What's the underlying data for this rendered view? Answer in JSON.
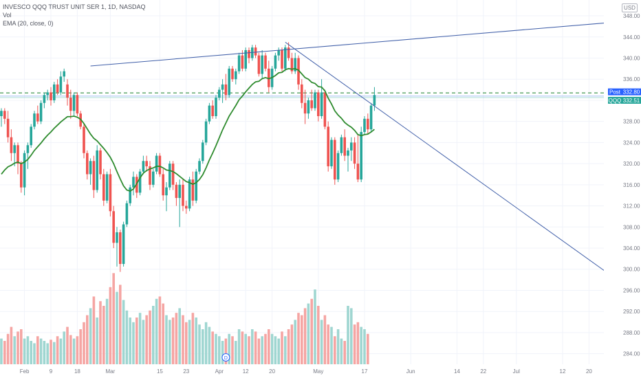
{
  "legend": {
    "symbol": "INVESCO QQQ TRUST UNIT SER 1, 1D, NASDAQ",
    "volume": "Vol",
    "ema": "EMA (20, close, 0)"
  },
  "currency": "USD",
  "chart_data": {
    "type": "candlestick",
    "y_axis": {
      "range": [
        282,
        351
      ],
      "ticks": [
        284,
        288,
        292,
        296,
        300,
        304,
        308,
        312,
        316,
        320,
        324,
        328,
        332,
        336,
        340,
        344,
        348
      ]
    },
    "x_axis": {
      "tick_labels": [
        "Feb",
        "9",
        "18",
        "Mar",
        "15",
        "23",
        "Apr",
        "12",
        "20",
        "May",
        "17",
        "Jun",
        "14",
        "22",
        "Jul",
        "12",
        "20"
      ],
      "tick_index": [
        7,
        15,
        23,
        33,
        48,
        56,
        66,
        74,
        82,
        96,
        110,
        124,
        138,
        146,
        156,
        170,
        178
      ]
    },
    "candles": [
      [
        329.0,
        330.5,
        327.0,
        330.0
      ],
      [
        330.0,
        330.5,
        327.5,
        328.5
      ],
      [
        328.5,
        330.0,
        324.0,
        325.0
      ],
      [
        325.0,
        326.5,
        320.5,
        322.0
      ],
      [
        322.0,
        324.0,
        319.5,
        323.5
      ],
      [
        323.5,
        324.0,
        318.0,
        320.0
      ],
      [
        320.0,
        320.5,
        314.5,
        315.5
      ],
      [
        315.5,
        322.5,
        314.0,
        322.0
      ],
      [
        322.0,
        324.0,
        319.0,
        323.5
      ],
      [
        323.5,
        327.5,
        323.0,
        327.0
      ],
      [
        327.0,
        330.0,
        326.5,
        329.5
      ],
      [
        329.5,
        331.0,
        327.5,
        328.0
      ],
      [
        328.0,
        332.0,
        327.5,
        331.5
      ],
      [
        331.5,
        333.5,
        330.5,
        333.0
      ],
      [
        333.0,
        334.0,
        332.0,
        333.5
      ],
      [
        333.5,
        334.5,
        331.0,
        332.0
      ],
      [
        332.0,
        335.5,
        331.5,
        335.0
      ],
      [
        335.0,
        336.0,
        333.0,
        333.5
      ],
      [
        333.5,
        337.5,
        333.0,
        336.5
      ],
      [
        336.5,
        338.0,
        335.5,
        337.5
      ],
      [
        335.0,
        336.0,
        331.0,
        332.5
      ],
      [
        332.5,
        334.0,
        328.5,
        330.0
      ],
      [
        330.0,
        333.5,
        329.0,
        333.0
      ],
      [
        333.0,
        333.5,
        329.0,
        329.5
      ],
      [
        329.5,
        330.0,
        326.5,
        327.0
      ],
      [
        327.0,
        327.5,
        321.0,
        322.0
      ],
      [
        322.0,
        322.5,
        317.0,
        318.0
      ],
      [
        318.0,
        321.0,
        316.0,
        320.5
      ],
      [
        320.5,
        321.5,
        313.5,
        315.0
      ],
      [
        315.0,
        323.5,
        314.5,
        322.5
      ],
      [
        322.5,
        323.0,
        317.0,
        318.0
      ],
      [
        318.0,
        319.0,
        312.0,
        313.0
      ],
      [
        313.0,
        318.5,
        312.5,
        318.0
      ],
      [
        318.0,
        319.0,
        310.0,
        311.0
      ],
      [
        311.0,
        312.0,
        304.0,
        305.0
      ],
      [
        305.0,
        308.0,
        300.5,
        307.0
      ],
      [
        307.0,
        307.5,
        299.5,
        301.0
      ],
      [
        301.0,
        309.0,
        300.5,
        308.5
      ],
      [
        308.5,
        313.0,
        308.0,
        312.5
      ],
      [
        312.5,
        316.0,
        312.0,
        315.5
      ],
      [
        315.5,
        318.5,
        314.0,
        317.5
      ],
      [
        317.5,
        318.0,
        313.5,
        314.5
      ],
      [
        314.5,
        319.0,
        314.0,
        318.5
      ],
      [
        318.5,
        321.5,
        318.0,
        320.5
      ],
      [
        320.5,
        321.5,
        318.5,
        319.5
      ],
      [
        319.5,
        320.5,
        315.0,
        316.0
      ],
      [
        316.0,
        319.0,
        315.5,
        318.5
      ],
      [
        318.5,
        322.0,
        318.0,
        321.5
      ],
      [
        321.5,
        322.0,
        317.5,
        318.0
      ],
      [
        318.0,
        319.0,
        313.0,
        314.0
      ],
      [
        314.0,
        316.5,
        311.0,
        315.5
      ],
      [
        315.5,
        320.5,
        315.0,
        320.0
      ],
      [
        320.0,
        320.5,
        315.0,
        316.0
      ],
      [
        316.0,
        316.5,
        312.0,
        313.5
      ],
      [
        313.5,
        317.0,
        308.0,
        316.0
      ],
      [
        316.0,
        317.0,
        311.0,
        312.0
      ],
      [
        312.0,
        313.0,
        310.5,
        311.5
      ],
      [
        311.5,
        317.5,
        311.0,
        317.0
      ],
      [
        317.0,
        318.5,
        312.0,
        313.0
      ],
      [
        313.0,
        319.0,
        312.5,
        318.5
      ],
      [
        318.5,
        321.0,
        318.0,
        320.5
      ],
      [
        320.5,
        324.5,
        320.0,
        324.0
      ],
      [
        324.0,
        328.5,
        323.5,
        328.0
      ],
      [
        328.0,
        331.5,
        327.5,
        331.0
      ],
      [
        331.0,
        332.0,
        328.5,
        329.0
      ],
      [
        329.0,
        333.0,
        328.5,
        332.5
      ],
      [
        332.5,
        334.5,
        332.0,
        334.0
      ],
      [
        334.0,
        336.0,
        331.5,
        335.0
      ],
      [
        335.0,
        337.0,
        332.0,
        333.0
      ],
      [
        333.0,
        338.5,
        332.5,
        338.0
      ],
      [
        338.0,
        338.5,
        335.5,
        336.0
      ],
      [
        336.0,
        338.0,
        335.0,
        337.5
      ],
      [
        337.5,
        341.0,
        337.0,
        340.5
      ],
      [
        340.5,
        341.5,
        337.5,
        338.0
      ],
      [
        338.0,
        342.0,
        337.5,
        341.5
      ],
      [
        341.5,
        342.0,
        339.0,
        340.0
      ],
      [
        340.0,
        342.5,
        339.5,
        342.0
      ],
      [
        342.0,
        342.5,
        340.0,
        340.5
      ],
      [
        340.5,
        341.0,
        336.5,
        337.0
      ],
      [
        337.0,
        341.5,
        336.0,
        340.5
      ],
      [
        340.5,
        341.0,
        337.5,
        338.0
      ],
      [
        338.0,
        339.5,
        333.5,
        334.5
      ],
      [
        334.5,
        338.5,
        334.0,
        338.0
      ],
      [
        338.0,
        341.0,
        337.5,
        340.5
      ],
      [
        340.5,
        342.0,
        339.5,
        341.5
      ],
      [
        341.5,
        342.0,
        337.5,
        338.0
      ],
      [
        338.0,
        342.5,
        337.5,
        342.0
      ],
      [
        342.0,
        343.0,
        339.5,
        340.0
      ],
      [
        340.0,
        341.0,
        337.0,
        337.5
      ],
      [
        337.5,
        341.0,
        337.0,
        340.0
      ],
      [
        340.0,
        340.5,
        334.0,
        335.0
      ],
      [
        335.0,
        336.0,
        330.5,
        331.5
      ],
      [
        331.5,
        334.0,
        327.5,
        329.5
      ],
      [
        329.5,
        332.5,
        328.5,
        332.0
      ],
      [
        332.0,
        334.0,
        330.0,
        330.5
      ],
      [
        330.5,
        334.0,
        330.0,
        333.5
      ],
      [
        333.5,
        334.0,
        328.0,
        329.0
      ],
      [
        329.0,
        336.0,
        328.5,
        333.5
      ],
      [
        333.5,
        334.0,
        326.5,
        327.0
      ],
      [
        327.0,
        328.0,
        318.5,
        319.5
      ],
      [
        319.5,
        325.0,
        319.0,
        324.5
      ],
      [
        324.5,
        325.0,
        316.0,
        317.0
      ],
      [
        317.0,
        322.5,
        316.5,
        322.0
      ],
      [
        322.0,
        325.5,
        321.5,
        325.0
      ],
      [
        325.0,
        326.5,
        320.5,
        321.5
      ],
      [
        321.5,
        323.0,
        318.5,
        322.5
      ],
      [
        322.5,
        325.0,
        320.5,
        324.0
      ],
      [
        324.0,
        325.0,
        319.0,
        320.0
      ],
      [
        320.0,
        325.5,
        316.5,
        317.0
      ],
      [
        317.0,
        327.0,
        316.5,
        326.0
      ],
      [
        326.0,
        329.0,
        325.5,
        328.5
      ],
      [
        328.5,
        329.5,
        325.5,
        326.5
      ],
      [
        326.5,
        331.5,
        326.0,
        331.0
      ],
      [
        331.0,
        334.5,
        330.0,
        333.0
      ]
    ],
    "volume": [
      22,
      20,
      26,
      32,
      24,
      28,
      30,
      22,
      24,
      20,
      18,
      24,
      22,
      20,
      18,
      21,
      19,
      24,
      22,
      28,
      32,
      25,
      22,
      24,
      30,
      36,
      42,
      48,
      58,
      40,
      54,
      50,
      56,
      66,
      78,
      62,
      68,
      55,
      46,
      40,
      36,
      40,
      44,
      38,
      42,
      46,
      50,
      56,
      58,
      52,
      42,
      38,
      40,
      44,
      48,
      42,
      36,
      38,
      44,
      40,
      34,
      30,
      36,
      32,
      28,
      26,
      24,
      20,
      22,
      26,
      24,
      20,
      30,
      28,
      26,
      24,
      30,
      28,
      22,
      24,
      26,
      30,
      26,
      24,
      22,
      28,
      24,
      30,
      34,
      38,
      44,
      42,
      48,
      52,
      56,
      64,
      50,
      38,
      42,
      34,
      32,
      24,
      30,
      22,
      20,
      50,
      48,
      34,
      36,
      32,
      30,
      26
    ],
    "ema_20": [
      318.0,
      318.8,
      319.4,
      319.7,
      320.1,
      320.3,
      320.0,
      320.3,
      320.8,
      321.6,
      322.5,
      323.2,
      323.9,
      324.7,
      325.4,
      326.0,
      326.7,
      327.3,
      327.9,
      328.4,
      328.9,
      328.9,
      329.0,
      328.8,
      328.4,
      327.6,
      326.6,
      325.6,
      324.8,
      324.3,
      323.6,
      322.9,
      322.1,
      321.2,
      320.0,
      318.5,
      317.1,
      315.8,
      315.0,
      314.8,
      315.2,
      316.2,
      317.3,
      318.2,
      318.7,
      319.0,
      319.2,
      319.5,
      319.5,
      319.2,
      318.8,
      318.7,
      318.5,
      318.1,
      317.6,
      317.1,
      316.6,
      316.4,
      316.1,
      316.4,
      317.0,
      317.9,
      319.2,
      320.7,
      322.0,
      323.4,
      324.9,
      326.4,
      327.7,
      329.0,
      330.0,
      331.0,
      332.1,
      332.8,
      333.6,
      334.3,
      335.0,
      335.5,
      335.6,
      336.1,
      336.3,
      336.1,
      336.3,
      336.7,
      337.2,
      337.3,
      337.8,
      338.0,
      337.9,
      338.0,
      337.7,
      337.0,
      336.3,
      336.0,
      335.4,
      335.2,
      334.6,
      334.5,
      333.8,
      332.4,
      331.3,
      330.0,
      329.2,
      328.6,
      327.8,
      327.3,
      326.9,
      326.3,
      325.5,
      325.3,
      325.5,
      325.6,
      326.0,
      326.5
    ],
    "trendlines": [
      {
        "from": {
          "index": 27,
          "price": 338.5
        },
        "to": {
          "index": 224,
          "price": 348.8
        }
      },
      {
        "from": {
          "index": 86,
          "price": 343.0
        },
        "to": {
          "index": 220,
          "price": 283.0
        }
      }
    ],
    "horizontal_lines": [
      {
        "price": 333.4,
        "style": "dashed",
        "color": "#2e8b3e"
      }
    ],
    "price_tags": [
      {
        "label": "Post",
        "value": "332.80",
        "color": "#2962ff"
      },
      {
        "label": "QQQ",
        "value": "332.51",
        "color": "#26a69a"
      }
    ],
    "event_marker": {
      "index": 68,
      "label": "D"
    },
    "colors": {
      "up": "#26a69a",
      "down": "#ef5350",
      "vol_up": "#9fd6d1",
      "vol_down": "#f5a5a3",
      "ema": "#2e8b2e",
      "trendline": "#3f5ea8",
      "grid": "#f0f3fa"
    }
  }
}
